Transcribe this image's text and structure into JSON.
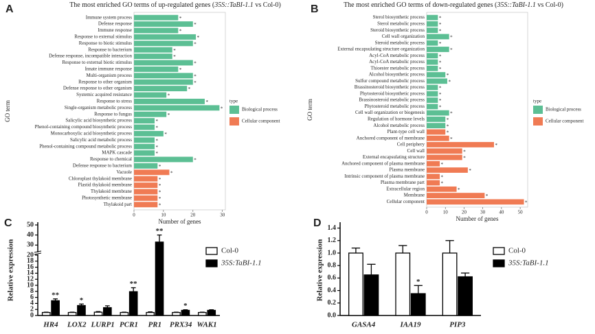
{
  "chart_data": [
    {
      "type": "bar",
      "orientation": "horizontal",
      "panel": "A",
      "title": [
        "The most enriched GO terms of up-regulated genes (",
        "35S::TaBI-1.1",
        " vs Col-0)"
      ],
      "x_label": "Number of genes",
      "y_label": "GO term",
      "legend_title": "type",
      "categories": [
        "Immune system process",
        "Defense response",
        "Immune response",
        "Response to external stimulus",
        "Response to biotic stimulus",
        "Response to bacterium",
        "Defense response, incompatible interaction",
        "Response to external biotic stimulus",
        "Innate immune response",
        "Multi-organism process",
        "Response to other organism",
        "Defense response to other organism",
        "Systemic acquired resistance",
        "Response to stress",
        "Single-organism metabolic process",
        "Response to fungus",
        "Salicylic acid biosynthetic process",
        "Phenol-containing compound biosynthetic process",
        "Monocarboxylic acid biosynthetic process",
        "Salicylic acid metabolic process",
        "Phenol-containing compound metabolic process",
        "MAPK cascade",
        "Response to chemical",
        "Defense response to bacterium",
        "Vacuole",
        "Chloroplast thylakoid membrane",
        "Plastid thylakoid membrane",
        "Thylakoid membrane",
        "Photosynthetic membrane",
        "Thylakoid part"
      ],
      "series": [
        {
          "name": "Biological process",
          "color": "#5cbf94",
          "values": [
            15,
            20,
            15,
            21,
            20,
            13,
            13,
            20,
            15,
            20,
            20,
            18,
            11,
            24,
            29,
            11,
            7,
            7,
            10,
            7,
            7,
            7,
            20,
            8,
            null,
            null,
            null,
            null,
            null,
            null
          ]
        },
        {
          "name": "Cellular component",
          "color": "#f07b54",
          "values": [
            null,
            null,
            null,
            null,
            null,
            null,
            null,
            null,
            null,
            null,
            null,
            null,
            null,
            null,
            null,
            null,
            null,
            null,
            null,
            null,
            null,
            null,
            null,
            null,
            12,
            8,
            8,
            8,
            8,
            8
          ]
        }
      ],
      "significance": [
        "*",
        "*",
        "*",
        "*",
        "*",
        "*",
        "*",
        "*",
        "*",
        "*",
        "*",
        "*",
        "*",
        "*",
        "*",
        "*",
        "*",
        "*",
        "*",
        "*",
        "*",
        "*",
        "*",
        "*",
        "*",
        "*",
        "*",
        "*",
        "*",
        "*"
      ],
      "xlim": [
        0,
        31
      ],
      "xticks": [
        0,
        10,
        20,
        30
      ]
    },
    {
      "type": "bar",
      "orientation": "horizontal",
      "panel": "B",
      "title": [
        "The most enriched GO terms of down-regulated genes (",
        "35S::TaBI-1.1",
        " vs Col-0)"
      ],
      "x_label": "Number of genes",
      "y_label": "GO term",
      "legend_title": "type",
      "categories": [
        "Sterol biosynthetic process",
        "Sterol metabolic process",
        "Steroid biosynthetic process",
        "Cell wall organization",
        "Steroid metabolic process",
        "External encapsulating structure organization",
        "Acyl-CoA metabolic process",
        "Acyl-CoA metabolic process",
        "Thioester metabolic process",
        "Alcohol biosynthetic process",
        "Sulfur compound metabolic process",
        "Brassinosteroid biosynthetic process",
        "Phytosteroid biosynthetic process",
        "Brassinosteroid metabolic process",
        "Phytosteroid metabolic process",
        "Cell wall organization or biogenesis",
        "Regulation of hormone levels",
        "Alcohol metabolic process",
        "Plant-type cell wall",
        "Anchored component of membrane",
        "Cell periphery",
        "Cell wall",
        "External encapsulating structure",
        "Anchored component of plasma membrane",
        "Plasma membrane",
        "Intrinsic component of plasma membrane",
        "Plasma membrane part",
        "Extracellular region",
        "Membrane",
        "Cellular component"
      ],
      "series": [
        {
          "name": "Biological process",
          "color": "#5cbf94",
          "values": [
            6,
            6,
            6,
            12,
            6,
            12,
            6,
            6,
            6,
            10,
            11,
            6,
            6,
            6,
            6,
            12,
            10,
            10,
            null,
            null,
            null,
            null,
            null,
            null,
            null,
            null,
            null,
            null,
            null,
            null
          ]
        },
        {
          "name": "Cellular component",
          "color": "#f07b54",
          "values": [
            null,
            null,
            null,
            null,
            null,
            null,
            null,
            null,
            null,
            null,
            null,
            null,
            null,
            null,
            null,
            null,
            null,
            null,
            10,
            12,
            36,
            19,
            19,
            7,
            22,
            7,
            7,
            16,
            31,
            52
          ]
        }
      ],
      "significance": [
        "*",
        "*",
        "*",
        "*",
        "*",
        "*",
        "*",
        "*",
        "*",
        "*",
        "*",
        "*",
        "*",
        "*",
        "*",
        "*",
        "*",
        "*",
        "*",
        "*",
        "*",
        "*",
        "*",
        "*",
        "*",
        "*",
        "*",
        "*",
        "*",
        "*"
      ],
      "xlim": [
        0,
        54
      ],
      "xticks": [
        0,
        10,
        20,
        30,
        40,
        50
      ]
    },
    {
      "type": "bar",
      "orientation": "vertical",
      "panel": "C",
      "y_label": "Relative expression",
      "categories": [
        "HR4",
        "LOX2",
        "LURP1",
        "PCR1",
        "PR1",
        "PRX34",
        "WAK1"
      ],
      "series": [
        {
          "name": "Col-0",
          "color": "#ffffff",
          "values": [
            1,
            1,
            1.1,
            1,
            1,
            1,
            1
          ],
          "errors": [
            0.1,
            0.1,
            0.2,
            0.1,
            0.2,
            0.1,
            0.1
          ]
        },
        {
          "name": "35S:TaBI-1.1",
          "color": "#000000",
          "values": [
            4.9,
            3.3,
            2.6,
            7.9,
            33,
            1.7,
            1.7
          ],
          "errors": [
            0.6,
            0.5,
            0.6,
            1.3,
            7,
            0.2,
            0.2
          ]
        }
      ],
      "significance": [
        "**",
        "*",
        null,
        "**",
        "**",
        "*",
        null
      ],
      "ylim": [
        0,
        50
      ],
      "ybreak": 20,
      "yticks": [
        0,
        2,
        4,
        6,
        8,
        10,
        12,
        14,
        16,
        18,
        20,
        30,
        40,
        50
      ]
    },
    {
      "type": "bar",
      "orientation": "vertical",
      "panel": "D",
      "y_label": "Relative expression",
      "categories": [
        "GASA4",
        "IAA19",
        "PIP3"
      ],
      "series": [
        {
          "name": "Col-0",
          "color": "#ffffff",
          "values": [
            1,
            1,
            1
          ],
          "errors": [
            0.08,
            0.12,
            0.2
          ]
        },
        {
          "name": "35S:TaBI-1.1",
          "color": "#000000",
          "values": [
            0.65,
            0.35,
            0.62
          ],
          "errors": [
            0.17,
            0.13,
            0.06
          ]
        }
      ],
      "significance": [
        null,
        "*",
        null
      ],
      "ylim": [
        0,
        1.45
      ],
      "yticks": [
        {
          "value": 0,
          "label": "0.0"
        },
        {
          "value": 0.2,
          "label": "0.2"
        },
        {
          "value": 0.4,
          "label": "0.4"
        },
        {
          "value": 0.6,
          "label": "0.6"
        },
        {
          "value": 0.8,
          "label": "0.8"
        },
        {
          "value": 1,
          "label": "1.0"
        },
        {
          "value": 1.2,
          "label": "1.2"
        },
        {
          "value": 1.4,
          "label": "1.4"
        }
      ]
    }
  ]
}
